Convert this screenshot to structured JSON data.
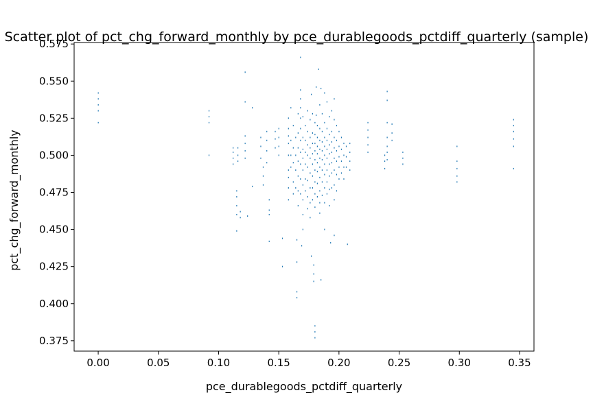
{
  "chart_data": {
    "type": "scatter",
    "title": "Scatter plot of pct_chg_forward_monthly by pce_durablegoods_pctdiff_quarterly (sample)",
    "xlabel": "pce_durablegoods_pctdiff_quarterly",
    "ylabel": "pct_chg_forward_monthly",
    "xlim": [
      -0.02,
      0.362
    ],
    "ylim": [
      0.368,
      0.576
    ],
    "xticks": [
      0.0,
      0.05,
      0.1,
      0.15,
      0.2,
      0.25,
      0.3,
      0.35
    ],
    "xtick_labels": [
      "0.00",
      "0.05",
      "0.10",
      "0.15",
      "0.20",
      "0.25",
      "0.30",
      "0.35"
    ],
    "yticks": [
      0.375,
      0.4,
      0.425,
      0.45,
      0.475,
      0.5,
      0.525,
      0.55,
      0.575
    ],
    "ytick_labels": [
      "0.375",
      "0.400",
      "0.425",
      "0.450",
      "0.475",
      "0.500",
      "0.525",
      "0.550",
      "0.575"
    ],
    "grid": false,
    "marker_color": "#1f77b4",
    "points": [
      [
        0.0,
        0.542
      ],
      [
        0.0,
        0.538
      ],
      [
        0.0,
        0.534
      ],
      [
        0.0,
        0.53
      ],
      [
        0.0,
        0.522
      ],
      [
        0.092,
        0.53
      ],
      [
        0.092,
        0.526
      ],
      [
        0.092,
        0.522
      ],
      [
        0.092,
        0.5
      ],
      [
        0.112,
        0.505
      ],
      [
        0.112,
        0.502
      ],
      [
        0.112,
        0.498
      ],
      [
        0.112,
        0.494
      ],
      [
        0.115,
        0.476
      ],
      [
        0.115,
        0.472
      ],
      [
        0.115,
        0.466
      ],
      [
        0.115,
        0.46
      ],
      [
        0.115,
        0.449
      ],
      [
        0.116,
        0.505
      ],
      [
        0.116,
        0.5
      ],
      [
        0.116,
        0.496
      ],
      [
        0.118,
        0.462
      ],
      [
        0.118,
        0.458
      ],
      [
        0.122,
        0.556
      ],
      [
        0.122,
        0.536
      ],
      [
        0.122,
        0.513
      ],
      [
        0.122,
        0.508
      ],
      [
        0.122,
        0.503
      ],
      [
        0.122,
        0.498
      ],
      [
        0.124,
        0.459
      ],
      [
        0.128,
        0.479
      ],
      [
        0.128,
        0.532
      ],
      [
        0.135,
        0.512
      ],
      [
        0.135,
        0.506
      ],
      [
        0.135,
        0.498
      ],
      [
        0.137,
        0.492
      ],
      [
        0.137,
        0.486
      ],
      [
        0.137,
        0.48
      ],
      [
        0.14,
        0.516
      ],
      [
        0.14,
        0.51
      ],
      [
        0.14,
        0.503
      ],
      [
        0.14,
        0.495
      ],
      [
        0.142,
        0.47
      ],
      [
        0.142,
        0.463
      ],
      [
        0.142,
        0.46
      ],
      [
        0.142,
        0.442
      ],
      [
        0.147,
        0.516
      ],
      [
        0.147,
        0.511
      ],
      [
        0.147,
        0.505
      ],
      [
        0.15,
        0.518
      ],
      [
        0.15,
        0.512
      ],
      [
        0.15,
        0.506
      ],
      [
        0.15,
        0.5
      ],
      [
        0.153,
        0.444
      ],
      [
        0.153,
        0.425
      ],
      [
        0.158,
        0.525
      ],
      [
        0.158,
        0.518
      ],
      [
        0.158,
        0.513
      ],
      [
        0.158,
        0.508
      ],
      [
        0.158,
        0.5
      ],
      [
        0.158,
        0.49
      ],
      [
        0.158,
        0.485
      ],
      [
        0.158,
        0.478
      ],
      [
        0.158,
        0.47
      ],
      [
        0.16,
        0.532
      ],
      [
        0.16,
        0.51
      ],
      [
        0.16,
        0.5
      ],
      [
        0.16,
        0.492
      ],
      [
        0.162,
        0.52
      ],
      [
        0.162,
        0.505
      ],
      [
        0.162,
        0.495
      ],
      [
        0.162,
        0.482
      ],
      [
        0.162,
        0.474
      ],
      [
        0.164,
        0.512
      ],
      [
        0.164,
        0.5
      ],
      [
        0.164,
        0.49
      ],
      [
        0.164,
        0.478
      ],
      [
        0.165,
        0.443
      ],
      [
        0.165,
        0.428
      ],
      [
        0.165,
        0.408
      ],
      [
        0.165,
        0.404
      ],
      [
        0.166,
        0.528
      ],
      [
        0.166,
        0.515
      ],
      [
        0.166,
        0.505
      ],
      [
        0.166,
        0.496
      ],
      [
        0.166,
        0.486
      ],
      [
        0.166,
        0.476
      ],
      [
        0.166,
        0.466
      ],
      [
        0.168,
        0.544
      ],
      [
        0.168,
        0.538
      ],
      [
        0.168,
        0.532
      ],
      [
        0.168,
        0.525
      ],
      [
        0.168,
        0.518
      ],
      [
        0.168,
        0.51
      ],
      [
        0.168,
        0.502
      ],
      [
        0.168,
        0.494
      ],
      [
        0.168,
        0.484
      ],
      [
        0.168,
        0.474
      ],
      [
        0.168,
        0.566
      ],
      [
        0.169,
        0.439
      ],
      [
        0.17,
        0.526
      ],
      [
        0.17,
        0.512
      ],
      [
        0.17,
        0.504
      ],
      [
        0.17,
        0.498
      ],
      [
        0.17,
        0.49
      ],
      [
        0.17,
        0.48
      ],
      [
        0.17,
        0.47
      ],
      [
        0.17,
        0.46
      ],
      [
        0.17,
        0.45
      ],
      [
        0.172,
        0.52
      ],
      [
        0.172,
        0.51
      ],
      [
        0.172,
        0.502
      ],
      [
        0.172,
        0.494
      ],
      [
        0.172,
        0.484
      ],
      [
        0.172,
        0.476
      ],
      [
        0.174,
        0.53
      ],
      [
        0.174,
        0.516
      ],
      [
        0.174,
        0.507
      ],
      [
        0.174,
        0.5
      ],
      [
        0.174,
        0.492
      ],
      [
        0.174,
        0.483
      ],
      [
        0.174,
        0.472
      ],
      [
        0.174,
        0.464
      ],
      [
        0.176,
        0.524
      ],
      [
        0.176,
        0.512
      ],
      [
        0.176,
        0.505
      ],
      [
        0.176,
        0.498
      ],
      [
        0.176,
        0.488
      ],
      [
        0.176,
        0.478
      ],
      [
        0.176,
        0.468
      ],
      [
        0.176,
        0.458
      ],
      [
        0.177,
        0.541
      ],
      [
        0.177,
        0.432
      ],
      [
        0.178,
        0.528
      ],
      [
        0.178,
        0.515
      ],
      [
        0.178,
        0.508
      ],
      [
        0.178,
        0.501
      ],
      [
        0.178,
        0.494
      ],
      [
        0.178,
        0.486
      ],
      [
        0.178,
        0.478
      ],
      [
        0.178,
        0.47
      ],
      [
        0.179,
        0.426
      ],
      [
        0.179,
        0.42
      ],
      [
        0.179,
        0.415
      ],
      [
        0.18,
        0.522
      ],
      [
        0.18,
        0.514
      ],
      [
        0.18,
        0.508
      ],
      [
        0.18,
        0.503
      ],
      [
        0.18,
        0.497
      ],
      [
        0.18,
        0.49
      ],
      [
        0.18,
        0.482
      ],
      [
        0.18,
        0.474
      ],
      [
        0.18,
        0.465
      ],
      [
        0.18,
        0.385
      ],
      [
        0.18,
        0.381
      ],
      [
        0.18,
        0.377
      ],
      [
        0.181,
        0.546
      ],
      [
        0.181,
        0.527
      ],
      [
        0.182,
        0.52
      ],
      [
        0.182,
        0.512
      ],
      [
        0.182,
        0.506
      ],
      [
        0.182,
        0.501
      ],
      [
        0.182,
        0.495
      ],
      [
        0.182,
        0.489
      ],
      [
        0.182,
        0.481
      ],
      [
        0.182,
        0.472
      ],
      [
        0.183,
        0.558
      ],
      [
        0.184,
        0.534
      ],
      [
        0.184,
        0.518
      ],
      [
        0.184,
        0.51
      ],
      [
        0.184,
        0.504
      ],
      [
        0.184,
        0.498
      ],
      [
        0.184,
        0.492
      ],
      [
        0.184,
        0.485
      ],
      [
        0.184,
        0.476
      ],
      [
        0.184,
        0.468
      ],
      [
        0.184,
        0.461
      ],
      [
        0.185,
        0.545
      ],
      [
        0.185,
        0.416
      ],
      [
        0.186,
        0.528
      ],
      [
        0.186,
        0.516
      ],
      [
        0.186,
        0.509
      ],
      [
        0.186,
        0.503
      ],
      [
        0.186,
        0.497
      ],
      [
        0.186,
        0.49
      ],
      [
        0.186,
        0.482
      ],
      [
        0.186,
        0.473
      ],
      [
        0.188,
        0.542
      ],
      [
        0.188,
        0.522
      ],
      [
        0.188,
        0.512
      ],
      [
        0.188,
        0.506
      ],
      [
        0.188,
        0.5
      ],
      [
        0.188,
        0.494
      ],
      [
        0.188,
        0.487
      ],
      [
        0.188,
        0.478
      ],
      [
        0.188,
        0.468
      ],
      [
        0.188,
        0.45
      ],
      [
        0.19,
        0.536
      ],
      [
        0.19,
        0.518
      ],
      [
        0.19,
        0.51
      ],
      [
        0.19,
        0.504
      ],
      [
        0.19,
        0.498
      ],
      [
        0.19,
        0.49
      ],
      [
        0.19,
        0.482
      ],
      [
        0.19,
        0.474
      ],
      [
        0.192,
        0.526
      ],
      [
        0.192,
        0.514
      ],
      [
        0.192,
        0.507
      ],
      [
        0.192,
        0.501
      ],
      [
        0.192,
        0.494
      ],
      [
        0.192,
        0.486
      ],
      [
        0.192,
        0.477
      ],
      [
        0.192,
        0.466
      ],
      [
        0.193,
        0.441
      ],
      [
        0.194,
        0.53
      ],
      [
        0.194,
        0.516
      ],
      [
        0.194,
        0.509
      ],
      [
        0.194,
        0.502
      ],
      [
        0.194,
        0.495
      ],
      [
        0.194,
        0.488
      ],
      [
        0.194,
        0.478
      ],
      [
        0.196,
        0.538
      ],
      [
        0.196,
        0.524
      ],
      [
        0.196,
        0.512
      ],
      [
        0.196,
        0.505
      ],
      [
        0.196,
        0.498
      ],
      [
        0.196,
        0.49
      ],
      [
        0.196,
        0.48
      ],
      [
        0.196,
        0.47
      ],
      [
        0.196,
        0.446
      ],
      [
        0.198,
        0.52
      ],
      [
        0.198,
        0.51
      ],
      [
        0.198,
        0.503
      ],
      [
        0.198,
        0.496
      ],
      [
        0.198,
        0.487
      ],
      [
        0.198,
        0.476
      ],
      [
        0.2,
        0.516
      ],
      [
        0.2,
        0.506
      ],
      [
        0.2,
        0.499
      ],
      [
        0.2,
        0.492
      ],
      [
        0.2,
        0.484
      ],
      [
        0.202,
        0.512
      ],
      [
        0.202,
        0.504
      ],
      [
        0.202,
        0.496
      ],
      [
        0.202,
        0.488
      ],
      [
        0.204,
        0.508
      ],
      [
        0.204,
        0.5
      ],
      [
        0.204,
        0.492
      ],
      [
        0.204,
        0.484
      ],
      [
        0.206,
        0.506
      ],
      [
        0.206,
        0.499
      ],
      [
        0.206,
        0.492
      ],
      [
        0.207,
        0.44
      ],
      [
        0.209,
        0.508
      ],
      [
        0.209,
        0.502
      ],
      [
        0.209,
        0.496
      ],
      [
        0.209,
        0.49
      ],
      [
        0.224,
        0.522
      ],
      [
        0.224,
        0.517
      ],
      [
        0.224,
        0.512
      ],
      [
        0.224,
        0.507
      ],
      [
        0.224,
        0.502
      ],
      [
        0.238,
        0.5
      ],
      [
        0.238,
        0.496
      ],
      [
        0.238,
        0.491
      ],
      [
        0.24,
        0.543
      ],
      [
        0.24,
        0.537
      ],
      [
        0.24,
        0.522
      ],
      [
        0.24,
        0.512
      ],
      [
        0.24,
        0.506
      ],
      [
        0.24,
        0.502
      ],
      [
        0.24,
        0.497
      ],
      [
        0.244,
        0.521
      ],
      [
        0.244,
        0.515
      ],
      [
        0.244,
        0.51
      ],
      [
        0.253,
        0.502
      ],
      [
        0.253,
        0.498
      ],
      [
        0.253,
        0.494
      ],
      [
        0.298,
        0.506
      ],
      [
        0.298,
        0.496
      ],
      [
        0.298,
        0.491
      ],
      [
        0.298,
        0.486
      ],
      [
        0.298,
        0.482
      ],
      [
        0.345,
        0.524
      ],
      [
        0.345,
        0.52
      ],
      [
        0.345,
        0.516
      ],
      [
        0.345,
        0.511
      ],
      [
        0.345,
        0.506
      ],
      [
        0.345,
        0.491
      ]
    ]
  }
}
